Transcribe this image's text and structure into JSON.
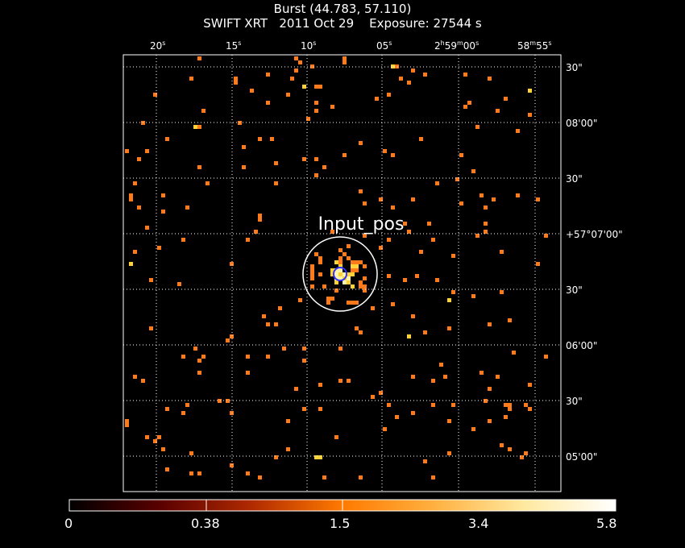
{
  "header": {
    "title": "Burst (44.783, 57.110)",
    "subtitle": "SWIFT XRT   2011 Oct 29    Exposure: 27544 s"
  },
  "ra_ticks": [
    {
      "base": "20",
      "unit": "s"
    },
    {
      "base": "15",
      "unit": "s"
    },
    {
      "base": "10",
      "unit": "s"
    },
    {
      "base": "05",
      "unit": "s"
    },
    {
      "base": "2",
      "unit": "h",
      "extra": [
        {
          "b": "59",
          "u": "m"
        },
        {
          "b": "00",
          "u": "s"
        }
      ]
    },
    {
      "base": "58",
      "unit": "m",
      "extra": [
        {
          "b": "55",
          "u": "s"
        }
      ]
    }
  ],
  "dec_ticks": [
    "30\"",
    "08'00\"",
    "30\"",
    "+57°07'00\"",
    "30\"",
    "06'00\"",
    "30\"",
    "05'00\""
  ],
  "region_label": "Input_pos",
  "colorbar": {
    "labels": [
      "0",
      "0.38",
      "1.5",
      "3.4",
      "5.8"
    ],
    "stops": [
      "#000000",
      "#5a0000",
      "#b02a00",
      "#ff7a00",
      "#ffb040",
      "#ffe9a0",
      "#ffffff"
    ]
  },
  "colors": {
    "background": "#000000",
    "source_pixel": "#ff7a1a",
    "bright_pixel": "#ffd23a",
    "hot_pixel": "#fff4a8",
    "region_circle": "#ffffff",
    "inner_circle": "#3030ff"
  }
}
